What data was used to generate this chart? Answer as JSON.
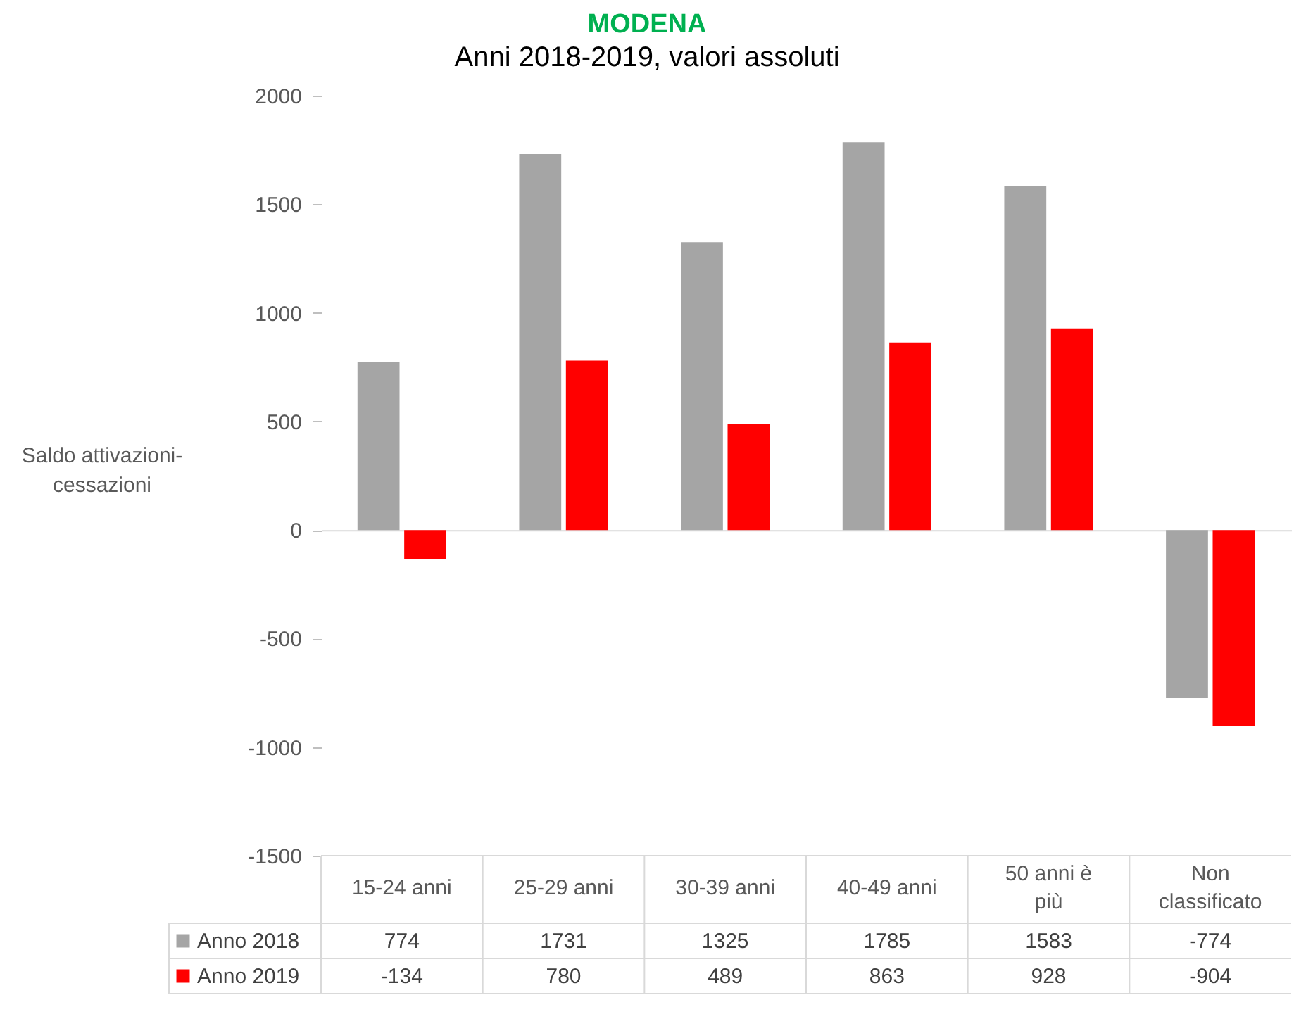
{
  "chart_data": {
    "type": "bar",
    "title": "MODENA",
    "subtitle": "Anni 2018-2019, valori assoluti",
    "ylabel": "Saldo attivazioni-cessazioni",
    "categories": [
      "15-24 anni",
      "25-29 anni",
      "30-39 anni",
      "40-49 anni",
      "50 anni è più",
      "Non classificato"
    ],
    "series": [
      {
        "name": "Anno 2018",
        "color": "#a5a5a5",
        "values": [
          774,
          1731,
          1325,
          1785,
          1583,
          -774
        ]
      },
      {
        "name": "Anno 2019",
        "color": "#ff0000",
        "values": [
          -134,
          780,
          489,
          863,
          928,
          -904
        ]
      }
    ],
    "ylim": [
      -1500,
      2000
    ],
    "yticks": [
      -1500,
      -1000,
      -500,
      0,
      500,
      1000,
      1500,
      2000
    ],
    "data_labels": true,
    "legend": "bottom left"
  }
}
